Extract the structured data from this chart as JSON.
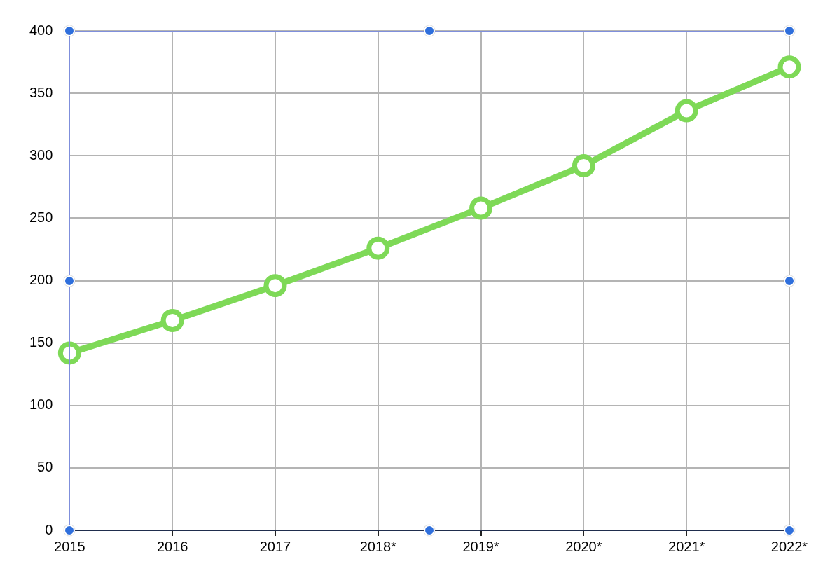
{
  "chart_data": {
    "type": "line",
    "categories": [
      "2015",
      "2016",
      "2017",
      "2018*",
      "2019*",
      "2020*",
      "2021*",
      "2022*"
    ],
    "series": [
      {
        "color": "#7ed957",
        "values": [
          142,
          168,
          196,
          226,
          258,
          292,
          336,
          371
        ]
      }
    ],
    "ylim": [
      0,
      400
    ],
    "yticks": [
      0,
      50,
      100,
      150,
      200,
      250,
      300,
      350,
      400
    ],
    "grid": true,
    "legend": false,
    "marker": "circle",
    "line_style": "solid"
  }
}
